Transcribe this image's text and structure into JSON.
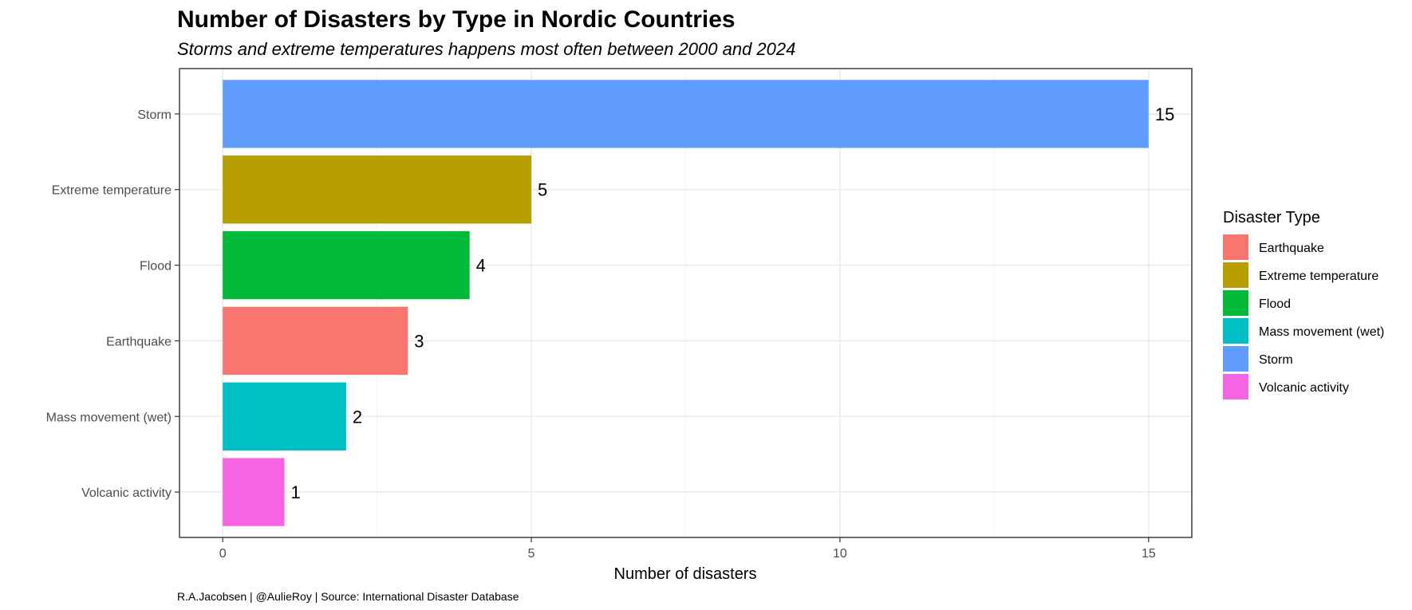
{
  "chart_data": {
    "type": "bar",
    "orientation": "horizontal",
    "title": "Number of Disasters by Type in Nordic Countries",
    "subtitle": "Storms and extreme temperatures happens most often between 2000 and 2024",
    "xlabel": "Number of disasters",
    "ylabel": "",
    "caption": "R.A.Jacobsen | @AulieRoy | Source: International Disaster Database",
    "categories": [
      "Storm",
      "Extreme temperature",
      "Flood",
      "Earthquake",
      "Mass movement (wet)",
      "Volcanic activity"
    ],
    "values": [
      15,
      5,
      4,
      3,
      2,
      1
    ],
    "bar_colors": [
      "#619CFF",
      "#B79F00",
      "#00BA38",
      "#F8766D",
      "#00BFC4",
      "#F564E3"
    ],
    "xlim": [
      -0.7,
      15.7
    ],
    "xticks": [
      0,
      5,
      10,
      15
    ],
    "grid": true,
    "legend": {
      "title": "Disaster Type",
      "position": "right",
      "items": [
        {
          "label": "Earthquake",
          "color": "#F8766D"
        },
        {
          "label": "Extreme temperature",
          "color": "#B79F00"
        },
        {
          "label": "Flood",
          "color": "#00BA38"
        },
        {
          "label": "Mass movement (wet)",
          "color": "#00BFC4"
        },
        {
          "label": "Storm",
          "color": "#619CFF"
        },
        {
          "label": "Volcanic activity",
          "color": "#F564E3"
        }
      ]
    }
  }
}
